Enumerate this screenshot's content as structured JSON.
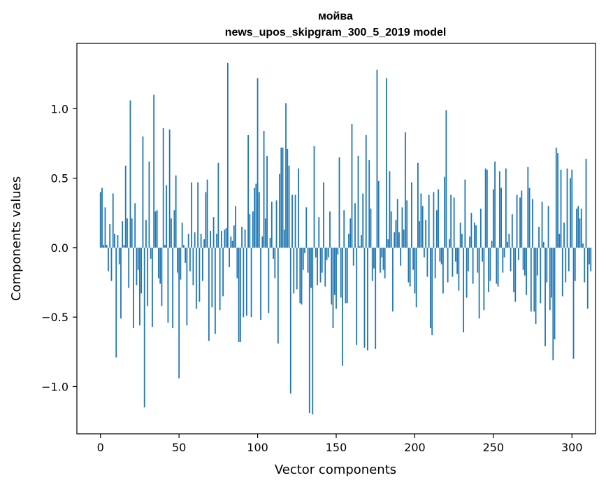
{
  "chart_data": {
    "type": "bar",
    "title": "мойва",
    "subtitle": "news_upos_skipgram_300_5_2019 model",
    "xlabel": "Vector components",
    "ylabel": "Components values",
    "xlim": [
      -15,
      315
    ],
    "ylim": [
      -1.34,
      1.47
    ],
    "xticks": [
      0,
      50,
      100,
      150,
      200,
      250,
      300
    ],
    "yticks": [
      -1.0,
      -0.5,
      0.0,
      0.5,
      1.0
    ],
    "xtick_labels": [
      "0",
      "50",
      "100",
      "150",
      "200",
      "250",
      "300"
    ],
    "ytick_labels": [
      "−1.0",
      "−0.5",
      "0.0",
      "0.5",
      "1.0"
    ],
    "bar_color": "#1f77b4",
    "grid": false,
    "legend": "none",
    "series": [
      {
        "x_start": 0,
        "values": [
          0.4,
          0.43,
          0.02,
          0.29,
          0.02,
          -0.17,
          0.17,
          -0.24,
          0.39,
          0.1,
          -0.79,
          0.09,
          -0.12,
          -0.51,
          0.19,
          0.02,
          0.59,
          0.21,
          -0.29,
          1.06,
          0.21,
          -0.58,
          0.32,
          -0.27,
          -0.16,
          -0.56,
          -0.33,
          0.8,
          -1.15,
          0.2,
          -0.42,
          0.62,
          -0.08,
          -0.57,
          1.1,
          0.26,
          0.27,
          -0.22,
          -0.26,
          -0.42,
          0.86,
          0.02,
          0.45,
          -0.54,
          0.85,
          0.21,
          -0.58,
          0.27,
          0.52,
          -0.18,
          -0.94,
          -0.23,
          0.18,
          0.02,
          -0.11,
          -0.56,
          0.1,
          -0.17,
          0.47,
          -0.27,
          0.11,
          -0.44,
          0.47,
          -0.39,
          0.1,
          -0.24,
          0.06,
          0.4,
          0.49,
          -0.67,
          0.12,
          -0.43,
          0.22,
          -0.62,
          0.1,
          0.61,
          -0.45,
          0.12,
          -0.35,
          0.13,
          0.14,
          1.33,
          -0.14,
          0.08,
          0.05,
          0.16,
          0.3,
          -0.22,
          -0.68,
          -0.68,
          0.15,
          -0.5,
          0.13,
          -0.49,
          0.81,
          0.24,
          -0.5,
          0.26,
          0.43,
          0.46,
          1.22,
          0.4,
          -0.52,
          0.08,
          0.84,
          0.21,
          0.66,
          -0.47,
          0.07,
          0.33,
          -0.08,
          -0.22,
          0.34,
          -0.69,
          0.53,
          0.72,
          0.72,
          0.13,
          1.04,
          0.71,
          0.59,
          -1.05,
          0.38,
          -0.33,
          0.38,
          -0.3,
          0.57,
          -0.4,
          -0.41,
          -0.16,
          -0.04,
          0.29,
          -0.18,
          -1.19,
          -0.29,
          -1.2,
          0.73,
          -0.07,
          -0.27,
          0.22,
          -0.25,
          -0.18,
          0.47,
          -0.28,
          -0.09,
          -0.07,
          0.26,
          -0.41,
          -0.58,
          -0.34,
          -0.44,
          -0.05,
          0.65,
          -0.36,
          -0.85,
          0.27,
          -0.4,
          -0.4,
          0.1,
          0.21,
          0.89,
          -0.13,
          0.32,
          -0.7,
          0.66,
          0.01,
          0.09,
          0.39,
          -0.72,
          0.81,
          -0.74,
          0.63,
          0.28,
          -0.24,
          -0.15,
          -0.73,
          1.28,
          0.48,
          -0.18,
          -0.07,
          -0.16,
          -0.22,
          1.22,
          0.06,
          0.55,
          0.26,
          -0.46,
          0.11,
          0.2,
          0.35,
          0.11,
          -0.13,
          0.29,
          0.13,
          0.83,
          0.34,
          -0.25,
          -0.28,
          0.47,
          -0.16,
          -0.33,
          -0.43,
          0.61,
          0.19,
          0.39,
          0.3,
          -0.07,
          0.2,
          -0.21,
          0.38,
          -0.58,
          -0.63,
          0.4,
          -0.22,
          0.27,
          0.42,
          -0.1,
          -0.12,
          -0.33,
          0.51,
          0.99,
          -0.25,
          0.06,
          0.38,
          -0.21,
          0.36,
          -0.1,
          -0.19,
          -0.31,
          0.18,
          0.1,
          -0.61,
          0.49,
          -0.36,
          -0.17,
          0.08,
          0.25,
          -0.26,
          0.18,
          0.16,
          -0.18,
          -0.51,
          0.28,
          -0.1,
          -0.45,
          0.57,
          0.56,
          -0.32,
          -0.24,
          0.05,
          0.42,
          0.62,
          -0.26,
          -0.28,
          0.55,
          0.43,
          -0.18,
          -0.07,
          0.57,
          0.04,
          0.1,
          -0.17,
          0.24,
          -0.32,
          -0.39,
          0.38,
          -0.09,
          0.36,
          0.41,
          -0.16,
          -0.2,
          -0.34,
          0.58,
          0.43,
          -0.46,
          0.35,
          -0.46,
          -0.55,
          -0.2,
          0.15,
          -0.4,
          0.33,
          0.04,
          -0.71,
          -0.25,
          0.3,
          -0.45,
          -0.36,
          -0.81,
          -0.66,
          0.72,
          0.68,
          0.1,
          0.56,
          -0.35,
          0.18,
          -0.25,
          0.57,
          -0.17,
          0.5,
          0.56,
          -0.8,
          -0.24,
          0.28,
          0.3,
          0.21,
          0.28,
          0.03,
          -0.25,
          0.64,
          -0.44,
          -0.12,
          -0.17
        ]
      }
    ]
  }
}
